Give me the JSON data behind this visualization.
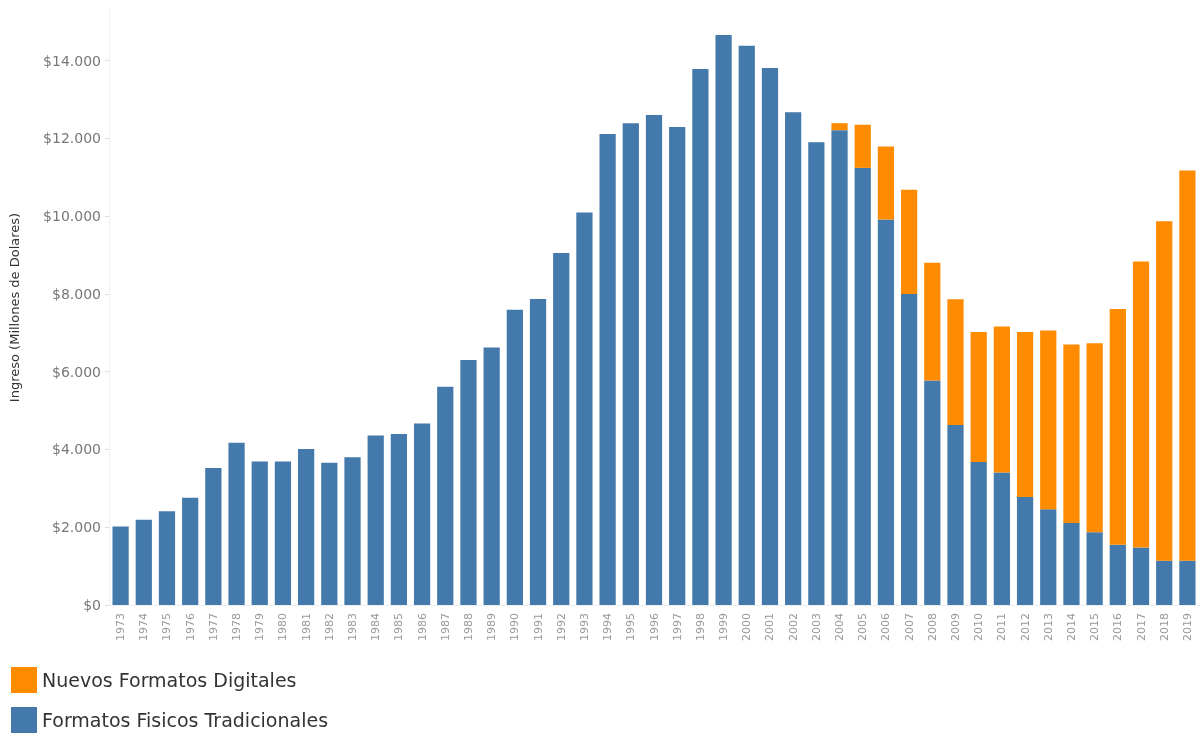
{
  "chart_data": {
    "type": "bar",
    "stacked": true,
    "ylabel": "Ingreso (Millones de Dolares)",
    "categories": [
      "1973",
      "1974",
      "1975",
      "1976",
      "1977",
      "1978",
      "1979",
      "1980",
      "1981",
      "1982",
      "1983",
      "1984",
      "1985",
      "1986",
      "1987",
      "1988",
      "1989",
      "1990",
      "1991",
      "1992",
      "1993",
      "1994",
      "1995",
      "1996",
      "1997",
      "1998",
      "1999",
      "2000",
      "2001",
      "2002",
      "2003",
      "2004",
      "2005",
      "2006",
      "2007",
      "2008",
      "2009",
      "2010",
      "2011",
      "2012",
      "2013",
      "2014",
      "2015",
      "2016",
      "2017",
      "2018",
      "2019"
    ],
    "series": [
      {
        "name": "Formatos Fisicos Tradicionales",
        "color": "#4379ab",
        "values": [
          2020,
          2190,
          2410,
          2760,
          3520,
          4170,
          3690,
          3690,
          4010,
          3660,
          3800,
          4360,
          4400,
          4670,
          5610,
          6300,
          6620,
          7590,
          7870,
          9050,
          10090,
          12110,
          12390,
          12600,
          12290,
          13780,
          14660,
          14380,
          13810,
          12670,
          11900,
          12210,
          11240,
          9910,
          8000,
          5770,
          4630,
          3680,
          3410,
          2780,
          2460,
          2110,
          1870,
          1550,
          1480,
          1140,
          1140
        ]
      },
      {
        "name": "Nuevos Formatos Digitales",
        "color": "#ff8b00",
        "values": [
          null,
          null,
          null,
          null,
          null,
          null,
          null,
          null,
          null,
          null,
          null,
          null,
          null,
          null,
          null,
          null,
          null,
          null,
          null,
          null,
          null,
          null,
          null,
          null,
          null,
          null,
          null,
          null,
          null,
          null,
          null,
          180,
          1110,
          1880,
          2680,
          3030,
          3230,
          3340,
          3750,
          4240,
          4600,
          4590,
          4860,
          6060,
          7350,
          8730,
          10030
        ]
      }
    ],
    "ylim": [
      0,
      15300
    ],
    "yticks": [
      {
        "value": 0,
        "label": "$0"
      },
      {
        "value": 2000,
        "label": "$2.000"
      },
      {
        "value": 4000,
        "label": "$4.000"
      },
      {
        "value": 6000,
        "label": "$6.000"
      },
      {
        "value": 8000,
        "label": "$8.000"
      },
      {
        "value": 10000,
        "label": "$10.000"
      },
      {
        "value": 12000,
        "label": "$12.000"
      },
      {
        "value": 14000,
        "label": "$14.000"
      }
    ],
    "grid": false,
    "legend": "bottom left"
  }
}
